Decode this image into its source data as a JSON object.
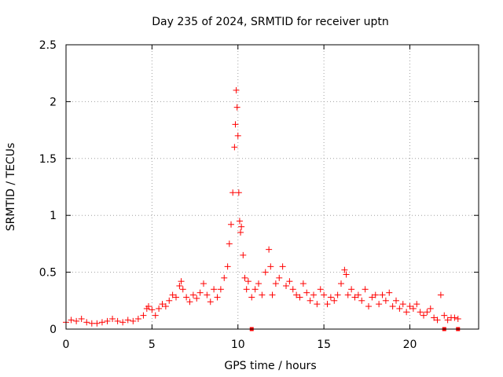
{
  "chart_data": {
    "type": "scatter",
    "title": "Day 235 of 2024, SRMTID for receiver uptn",
    "xlabel": "GPS time / hours",
    "ylabel": "SRMTID / TECUs",
    "xlim": [
      0,
      24
    ],
    "ylim": [
      0,
      2.5
    ],
    "xticks": [
      0,
      5,
      10,
      15,
      20
    ],
    "yticks": [
      0,
      0.5,
      1,
      1.5,
      2,
      2.5
    ],
    "grid": true,
    "marker": "+",
    "color": "#ff0000",
    "series": [
      {
        "name": "SRMTID",
        "x": [
          0.0,
          0.3,
          0.6,
          0.9,
          1.2,
          1.5,
          1.8,
          2.1,
          2.4,
          2.7,
          3.0,
          3.3,
          3.6,
          3.9,
          4.2,
          4.5,
          4.7,
          4.8,
          5.0,
          5.2,
          5.4,
          5.6,
          5.8,
          6.0,
          6.2,
          6.4,
          6.6,
          6.7,
          6.8,
          7.0,
          7.2,
          7.4,
          7.6,
          7.8,
          8.0,
          8.2,
          8.4,
          8.6,
          8.8,
          9.0,
          9.2,
          9.4,
          9.5,
          9.6,
          9.7,
          9.8,
          9.85,
          9.9,
          9.95,
          10.0,
          10.05,
          10.1,
          10.15,
          10.2,
          10.3,
          10.4,
          10.5,
          10.6,
          10.8,
          11.0,
          11.2,
          11.4,
          11.6,
          11.8,
          11.9,
          12.0,
          12.2,
          12.4,
          12.6,
          12.8,
          13.0,
          13.2,
          13.4,
          13.6,
          13.8,
          14.0,
          14.2,
          14.4,
          14.6,
          14.8,
          15.0,
          15.2,
          15.4,
          15.6,
          15.8,
          16.0,
          16.2,
          16.3,
          16.4,
          16.6,
          16.8,
          17.0,
          17.2,
          17.4,
          17.6,
          17.8,
          18.0,
          18.2,
          18.4,
          18.6,
          18.8,
          19.0,
          19.2,
          19.4,
          19.6,
          19.8,
          20.0,
          20.2,
          20.4,
          20.6,
          20.8,
          21.0,
          21.2,
          21.4,
          21.6,
          21.8,
          22.0,
          22.2,
          22.4,
          22.6,
          22.8
        ],
        "y": [
          0.06,
          0.08,
          0.07,
          0.09,
          0.06,
          0.05,
          0.05,
          0.06,
          0.07,
          0.09,
          0.07,
          0.06,
          0.08,
          0.07,
          0.09,
          0.12,
          0.18,
          0.2,
          0.17,
          0.12,
          0.18,
          0.22,
          0.2,
          0.25,
          0.3,
          0.28,
          0.38,
          0.42,
          0.35,
          0.28,
          0.24,
          0.3,
          0.27,
          0.32,
          0.4,
          0.3,
          0.24,
          0.35,
          0.28,
          0.35,
          0.45,
          0.55,
          0.75,
          0.92,
          1.2,
          1.6,
          1.8,
          2.1,
          1.95,
          1.7,
          1.2,
          0.95,
          0.85,
          0.9,
          0.65,
          0.45,
          0.35,
          0.42,
          0.28,
          0.35,
          0.4,
          0.3,
          0.5,
          0.7,
          0.55,
          0.3,
          0.4,
          0.45,
          0.55,
          0.38,
          0.42,
          0.35,
          0.3,
          0.28,
          0.4,
          0.32,
          0.25,
          0.3,
          0.22,
          0.35,
          0.3,
          0.22,
          0.28,
          0.25,
          0.3,
          0.4,
          0.52,
          0.48,
          0.3,
          0.35,
          0.28,
          0.3,
          0.25,
          0.35,
          0.2,
          0.28,
          0.3,
          0.22,
          0.3,
          0.25,
          0.32,
          0.2,
          0.25,
          0.18,
          0.22,
          0.15,
          0.2,
          0.18,
          0.22,
          0.15,
          0.12,
          0.15,
          0.18,
          0.1,
          0.08,
          0.3,
          0.12,
          0.08,
          0.1,
          0.1,
          0.09
        ]
      },
      {
        "name": "outliers",
        "x": [
          10.8,
          22.0,
          22.8
        ],
        "y": [
          0.0,
          0.0,
          0.0
        ]
      }
    ]
  }
}
